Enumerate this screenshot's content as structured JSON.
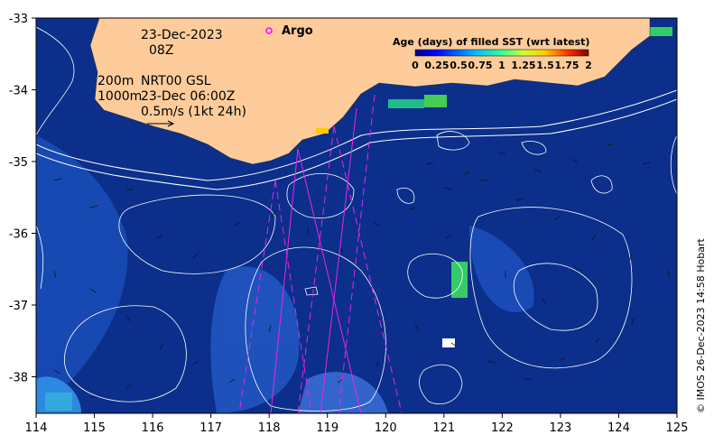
{
  "map": {
    "date_line1": "23-Dec-2023",
    "date_line2": "08Z",
    "contours_label": "200m",
    "contours_label2": "1000m",
    "product_label": "NRT00 GSL",
    "product_time": "23-Dec 06:00Z",
    "vector_scale_label": "0.5m/s (1kt 24h)",
    "argo_label": "Argo",
    "credit": "© IMOS 26-Dec-2023 14:58 Hobart",
    "x_ticks": [
      "114",
      "115",
      "116",
      "117",
      "118",
      "119",
      "120",
      "121",
      "122",
      "123",
      "124",
      "125"
    ],
    "y_ticks": [
      "-33",
      "-34",
      "-35",
      "-36",
      "-37",
      "-38"
    ],
    "colors": {
      "ocean": "#0b2f8a",
      "land": "#fdcc9a",
      "argo": "#ff00ff",
      "tracks": "#ee22ee"
    }
  },
  "legend": {
    "title": "Age (days) of filled SST (wrt latest)",
    "ticks": [
      "0",
      "0.25",
      "0.5",
      "0.75",
      "1",
      "1.25",
      "1.5",
      "1.75",
      "2"
    ]
  }
}
